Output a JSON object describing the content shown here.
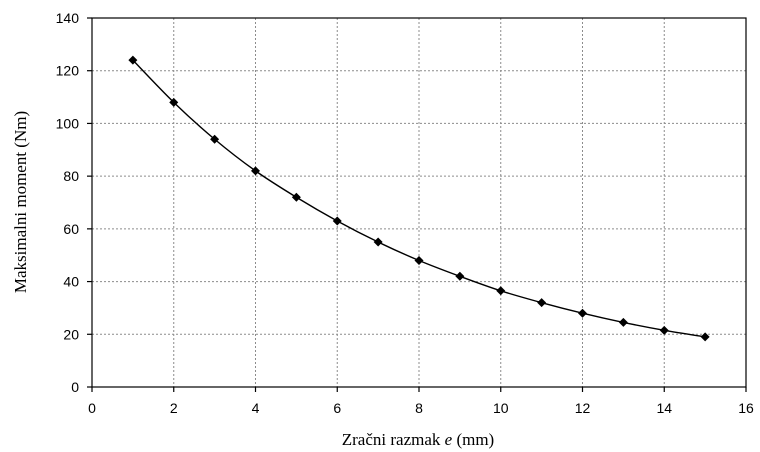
{
  "chart_data": {
    "type": "line",
    "title": "",
    "xlabel_parts": [
      "Zračni razmak ",
      "e",
      " (mm)"
    ],
    "ylabel": "Maksimalni moment (Nm)",
    "xlim": [
      0,
      16
    ],
    "ylim": [
      0,
      140
    ],
    "xticks": [
      "0",
      "2",
      "4",
      "6",
      "8",
      "10",
      "12",
      "14",
      "16"
    ],
    "yticks": [
      "0",
      "20",
      "40",
      "60",
      "80",
      "100",
      "120",
      "140"
    ],
    "grid": true,
    "marker": "diamond",
    "line_color": "#000000",
    "series": [
      {
        "x": [
          1,
          2,
          3,
          4,
          5,
          6,
          7,
          8,
          9,
          10,
          11,
          12,
          13,
          14,
          15
        ],
        "y": [
          124,
          108,
          94,
          82,
          72,
          63,
          55,
          48,
          42,
          36.5,
          32,
          28,
          24.5,
          21.5,
          19
        ]
      }
    ]
  }
}
